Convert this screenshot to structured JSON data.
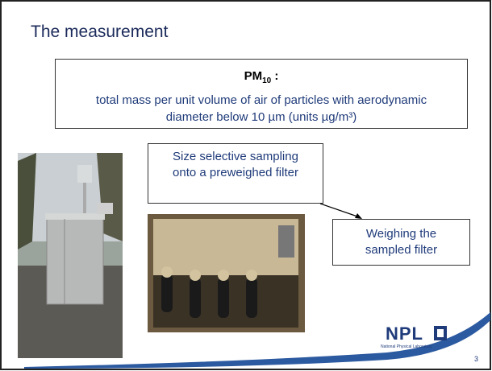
{
  "slide": {
    "title": "The measurement",
    "definition": {
      "heading": "PM",
      "heading_subscript": "10",
      "heading_suffix": ":",
      "text": "total mass per unit volume of air of particles with aerodynamic diameter below 10 µm (units µg/m³)"
    },
    "callouts": [
      "Size selective sampling onto a preweighed filter",
      "Weighing the sampled filter"
    ],
    "logo": {
      "name": "NPL",
      "subtitle": "National Physical Laboratory"
    },
    "page_number": "3"
  }
}
